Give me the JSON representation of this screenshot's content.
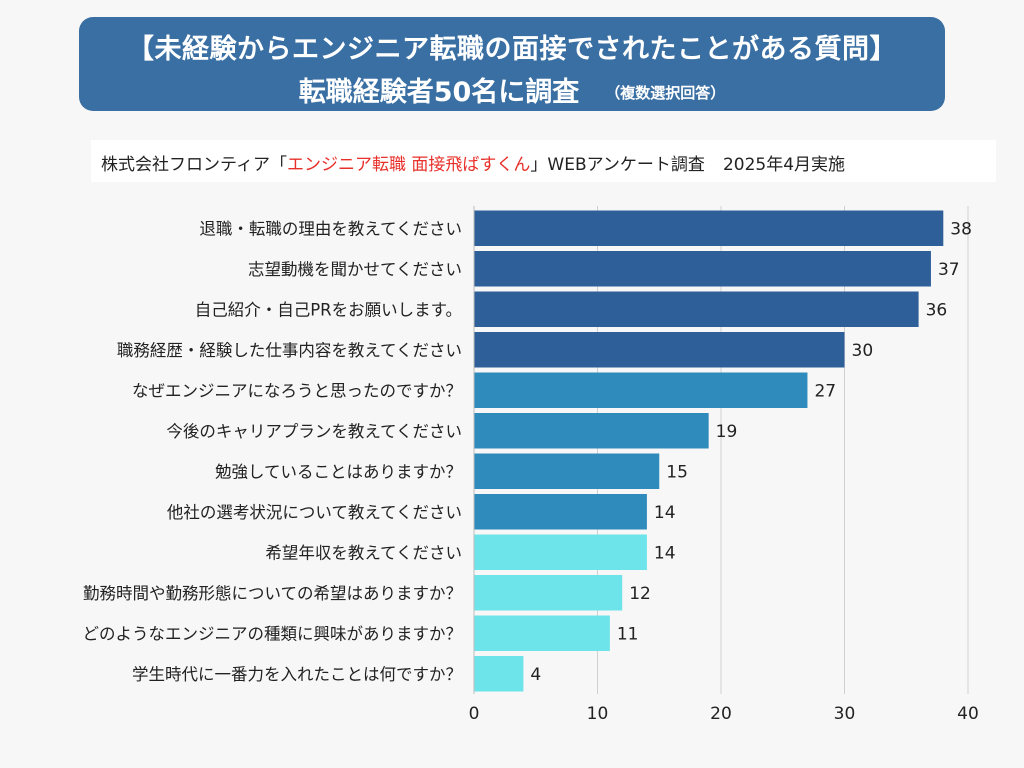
{
  "header": {
    "title_line1": "【未経験からエンジニア転職の面接でされたことがある質問】",
    "title_line2": "転職経験者50名に調査",
    "note": "（複数選択回答）"
  },
  "source": {
    "prefix": "株式会社フロンティア「",
    "highlight": "エンジニア転職 面接飛ばすくん",
    "suffix": "」WEBアンケート調査",
    "date": "2025年4月実施"
  },
  "colors": {
    "title_bg": "#3a6fa3",
    "source_highlight": "#e8302a"
  },
  "chart_data": {
    "type": "bar",
    "orientation": "horizontal",
    "categories": [
      "退職・転職の理由を教えてください",
      "志望動機を聞かせてください",
      "自己紹介・自己PRをお願いします。",
      "職務経歴・経験した仕事内容を教えてください",
      "なぜエンジニアになろうと思ったのですか？",
      "今後のキャリアプランを教えてください",
      "勉強していることはありますか？",
      "他社の選考状況について教えてください",
      "希望年収を教えてください",
      "勤務時間や勤務形態についての希望はありますか？",
      "どのようなエンジニアの種類に興味がありますか？",
      "学生時代に一番力を入れたことは何ですか？"
    ],
    "values": [
      38,
      37,
      36,
      30,
      27,
      19,
      15,
      14,
      14,
      12,
      11,
      4
    ],
    "bar_colors": [
      "#2e5f98",
      "#2e5f98",
      "#2e5f98",
      "#2e5f98",
      "#2f8bbb",
      "#2f8bbb",
      "#2f8bbb",
      "#2f8bbb",
      "#6de4ea",
      "#6de4ea",
      "#6de4ea",
      "#6de4ea"
    ],
    "xlim": [
      0,
      40
    ],
    "xticks": [
      0,
      10,
      20,
      30,
      40
    ],
    "grid": true,
    "data_labels": true
  }
}
